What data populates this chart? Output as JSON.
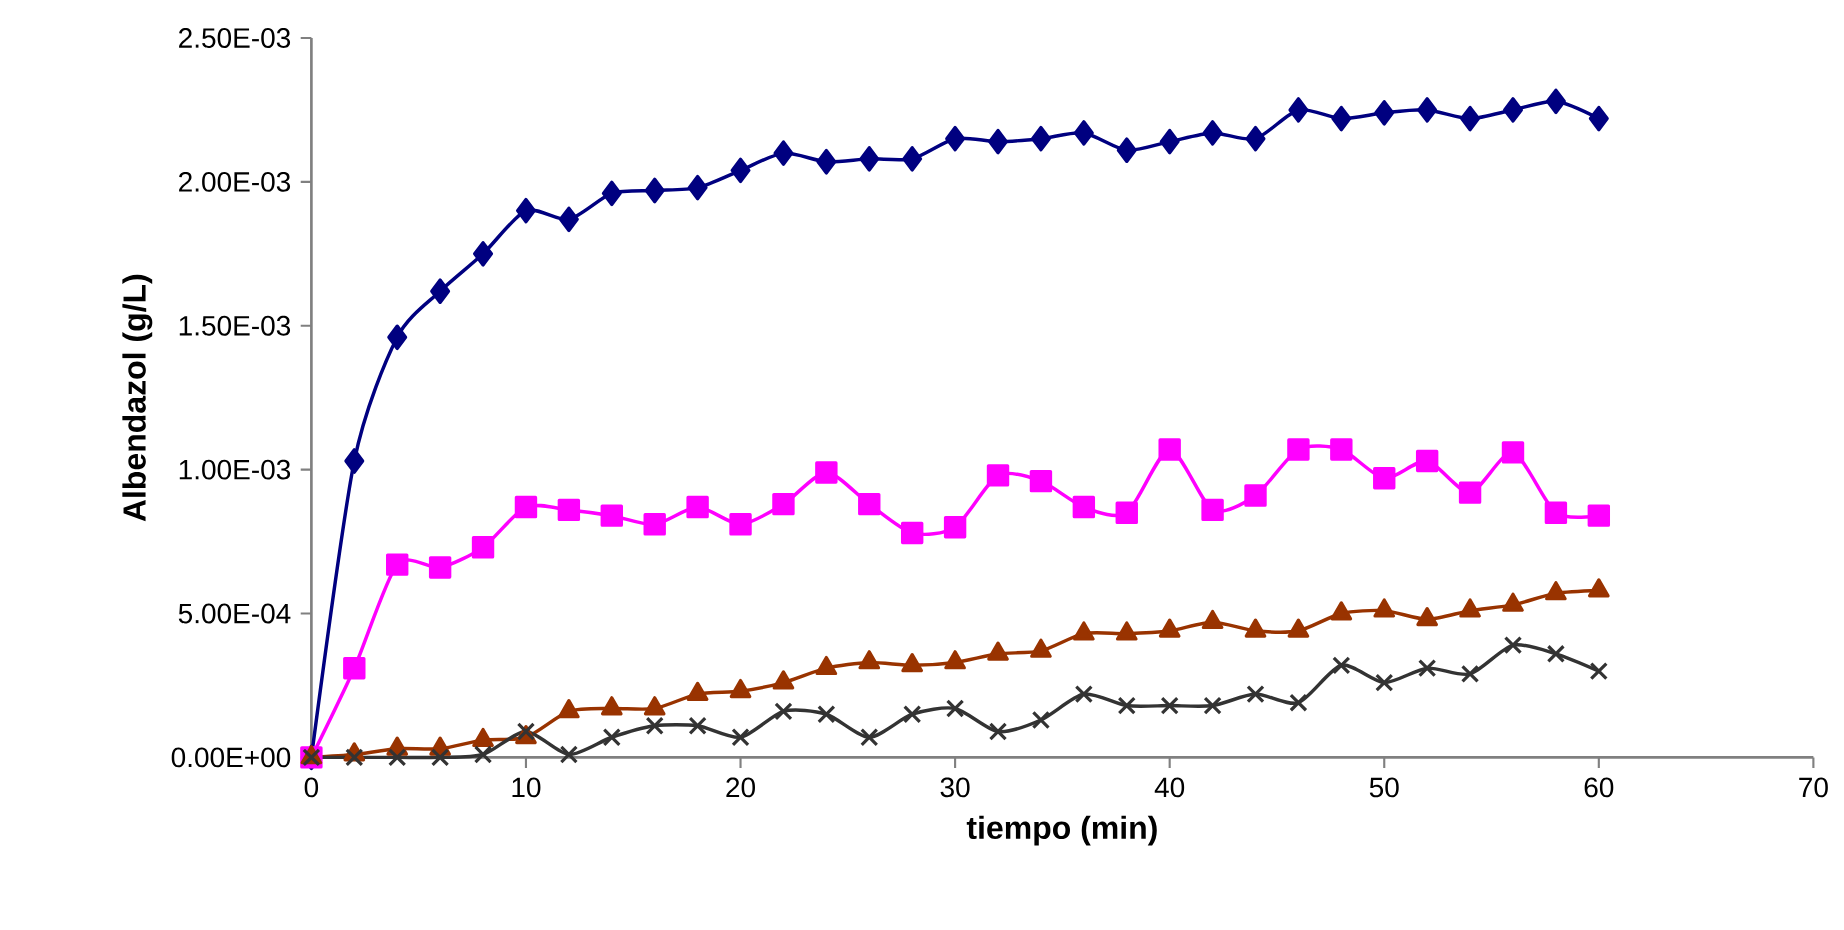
{
  "chart_data": {
    "type": "line",
    "xlabel": "tiempo (min)",
    "ylabel": "Albendazol (g/L)",
    "x": [
      0,
      2,
      4,
      6,
      8,
      10,
      12,
      14,
      16,
      18,
      20,
      22,
      24,
      26,
      28,
      30,
      32,
      34,
      36,
      38,
      40,
      42,
      44,
      46,
      48,
      50,
      52,
      54,
      56,
      58,
      60
    ],
    "xlim": [
      0,
      70
    ],
    "xticks": [
      0,
      10,
      20,
      30,
      40,
      50,
      60,
      70
    ],
    "ylim": [
      0,
      0.0025
    ],
    "yticks": [
      {
        "value": 0,
        "label": "0.00E+00"
      },
      {
        "value": 0.0005,
        "label": "5.00E-04"
      },
      {
        "value": 0.001,
        "label": "1.00E-03"
      },
      {
        "value": 0.0015,
        "label": "1.50E-03"
      },
      {
        "value": 0.002,
        "label": "2.00E-03"
      },
      {
        "value": 0.0025,
        "label": "2.50E-03"
      }
    ],
    "line_style": "solid",
    "series": [
      {
        "color": "#000080",
        "marker": "diamond",
        "values": [
          0,
          0.00103,
          0.00146,
          0.00162,
          0.00175,
          0.0019,
          0.00187,
          0.00196,
          0.00197,
          0.00198,
          0.00204,
          0.0021,
          0.00207,
          0.00208,
          0.00208,
          0.00215,
          0.00214,
          0.00215,
          0.00217,
          0.00211,
          0.00214,
          0.00217,
          0.00215,
          0.00225,
          0.00222,
          0.00224,
          0.00225,
          0.00222,
          0.00225,
          0.00228,
          0.00222
        ]
      },
      {
        "color": "#ff00ff",
        "marker": "square",
        "values": [
          0,
          0.00031,
          0.00067,
          0.00066,
          0.00073,
          0.00087,
          0.00086,
          0.00084,
          0.00081,
          0.00087,
          0.00081,
          0.00088,
          0.00099,
          0.00088,
          0.00078,
          0.0008,
          0.00098,
          0.00096,
          0.00087,
          0.00085,
          0.00107,
          0.00086,
          0.00091,
          0.00107,
          0.00107,
          0.00097,
          0.00103,
          0.00092,
          0.00106,
          0.00085,
          0.00084
        ]
      },
      {
        "color": "#993300",
        "marker": "triangle",
        "values": [
          0,
          1e-05,
          3e-05,
          3e-05,
          6e-05,
          7e-05,
          0.00016,
          0.00017,
          0.00017,
          0.00022,
          0.00023,
          0.00026,
          0.00031,
          0.00033,
          0.00032,
          0.00033,
          0.00036,
          0.00037,
          0.00043,
          0.00043,
          0.00044,
          0.00047,
          0.00044,
          0.00044,
          0.0005,
          0.00051,
          0.00048,
          0.00051,
          0.00053,
          0.00057,
          0.00058
        ]
      },
      {
        "color": "#333333",
        "marker": "cross",
        "values": [
          0,
          0,
          0,
          0,
          1e-05,
          9e-05,
          1e-05,
          7e-05,
          0.00011,
          0.00011,
          7e-05,
          0.00016,
          0.00015,
          7e-05,
          0.00015,
          0.00017,
          9e-05,
          0.00013,
          0.00022,
          0.00018,
          0.00018,
          0.00018,
          0.00022,
          0.00019,
          0.00032,
          0.00026,
          0.00031,
          0.00029,
          0.00039,
          0.00036,
          0.0003
        ]
      }
    ]
  }
}
